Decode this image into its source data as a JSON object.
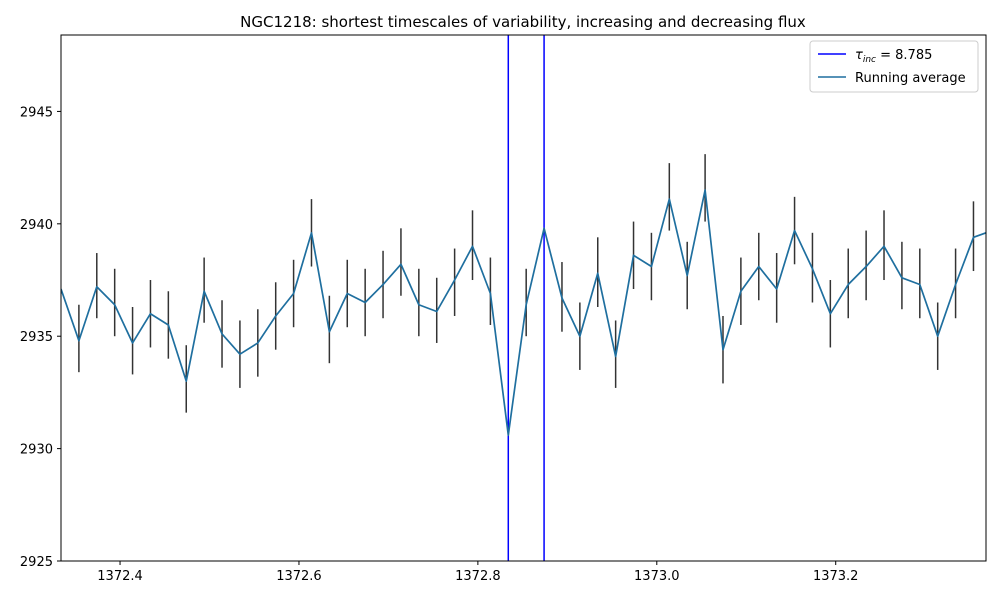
{
  "chart_data": {
    "type": "line",
    "title": "NGC1218: shortest timescales of variability, increasing and decreasing flux",
    "xlabel": "",
    "ylabel": "",
    "xlim": [
      1372.334,
      1373.368
    ],
    "ylim": [
      2925,
      2948.4
    ],
    "x_ticks": [
      1372.4,
      1372.6,
      1372.8,
      1373.0,
      1373.2
    ],
    "x_tick_labels": [
      "1372.4",
      "1372.6",
      "1372.8",
      "1373.0",
      "1373.2"
    ],
    "y_ticks": [
      2925,
      2930,
      2935,
      2940,
      2945
    ],
    "y_tick_labels": [
      "2925",
      "2930",
      "2935",
      "2940",
      "2945"
    ],
    "grid": false,
    "legend_position": "top-right",
    "colors": {
      "vlines": "#0000ff",
      "running_average": "#1f6f9f",
      "errorbars": "#333333"
    },
    "vlines": {
      "label_prefix": "τ",
      "label_sub": "inc",
      "label_suffix": " = 8.785",
      "x": [
        1372.834,
        1372.874
      ]
    },
    "series": [
      {
        "name": "Running average",
        "x": [
          1372.334,
          1372.354,
          1372.374,
          1372.394,
          1372.414,
          1372.434,
          1372.454,
          1372.474,
          1372.494,
          1372.514,
          1372.534,
          1372.554,
          1372.574,
          1372.594,
          1372.614,
          1372.634,
          1372.654,
          1372.674,
          1372.694,
          1372.714,
          1372.734,
          1372.754,
          1372.774,
          1372.794,
          1372.814,
          1372.834,
          1372.854,
          1372.874,
          1372.894,
          1372.914,
          1372.934,
          1372.954,
          1372.974,
          1372.994,
          1373.014,
          1373.034,
          1373.054,
          1373.074,
          1373.094,
          1373.114,
          1373.134,
          1373.154,
          1373.174,
          1373.194,
          1373.214,
          1373.234,
          1373.254,
          1373.274,
          1373.294,
          1373.314,
          1373.334,
          1373.354,
          1373.368
        ],
        "values": [
          2937.1,
          2934.8,
          2937.2,
          2936.4,
          2934.7,
          2936.0,
          2935.5,
          2933.0,
          2937.0,
          2935.1,
          2934.2,
          2934.7,
          2935.9,
          2936.9,
          2939.6,
          2935.2,
          2936.9,
          2936.5,
          2937.3,
          2938.2,
          2936.4,
          2936.1,
          2937.5,
          2939.0,
          2936.9,
          2930.6,
          2936.4,
          2939.8,
          2936.7,
          2935.0,
          2937.8,
          2934.1,
          2938.6,
          2938.1,
          2941.1,
          2937.7,
          2941.5,
          2934.4,
          2937.0,
          2938.1,
          2937.1,
          2939.7,
          2938.0,
          2936.0,
          2937.3,
          2938.1,
          2939.0,
          2937.6,
          2937.3,
          2935.0,
          2937.3,
          2939.4,
          2939.6
        ]
      }
    ],
    "errorbars": {
      "x": [
        1372.354,
        1372.374,
        1372.394,
        1372.414,
        1372.434,
        1372.454,
        1372.474,
        1372.494,
        1372.514,
        1372.534,
        1372.554,
        1372.574,
        1372.594,
        1372.614,
        1372.634,
        1372.654,
        1372.674,
        1372.694,
        1372.714,
        1372.734,
        1372.754,
        1372.774,
        1372.794,
        1372.814,
        1372.854,
        1372.894,
        1372.914,
        1372.934,
        1372.954,
        1372.974,
        1372.994,
        1373.014,
        1373.034,
        1373.054,
        1373.074,
        1373.094,
        1373.114,
        1373.134,
        1373.154,
        1373.174,
        1373.194,
        1373.214,
        1373.234,
        1373.254,
        1373.274,
        1373.294,
        1373.314,
        1373.334,
        1373.354
      ],
      "low": [
        2933.4,
        2935.8,
        2935.0,
        2933.3,
        2934.5,
        2934.0,
        2931.6,
        2935.6,
        2933.6,
        2932.7,
        2933.2,
        2934.4,
        2935.4,
        2938.1,
        2933.8,
        2935.4,
        2935.0,
        2935.8,
        2936.8,
        2935.0,
        2934.7,
        2935.9,
        2937.5,
        2935.5,
        2935.0,
        2935.2,
        2933.5,
        2936.3,
        2932.7,
        2937.1,
        2936.6,
        2939.7,
        2936.2,
        2940.1,
        2932.9,
        2935.5,
        2936.6,
        2935.6,
        2938.2,
        2936.5,
        2934.5,
        2935.8,
        2936.6,
        2937.5,
        2936.2,
        2935.8,
        2933.5,
        2935.8,
        2937.9
      ],
      "high": [
        2936.4,
        2938.7,
        2938.0,
        2936.3,
        2937.5,
        2937.0,
        2934.6,
        2938.5,
        2936.6,
        2935.7,
        2936.2,
        2937.4,
        2938.4,
        2941.1,
        2936.8,
        2938.4,
        2938.0,
        2938.8,
        2939.8,
        2938.0,
        2937.6,
        2938.9,
        2940.6,
        2938.5,
        2938.0,
        2938.3,
        2936.5,
        2939.4,
        2935.7,
        2940.1,
        2939.6,
        2942.7,
        2939.2,
        2943.1,
        2935.9,
        2938.5,
        2939.6,
        2938.7,
        2941.2,
        2939.6,
        2937.5,
        2938.9,
        2939.7,
        2940.6,
        2939.2,
        2938.9,
        2936.5,
        2938.9,
        2941.0
      ]
    }
  }
}
